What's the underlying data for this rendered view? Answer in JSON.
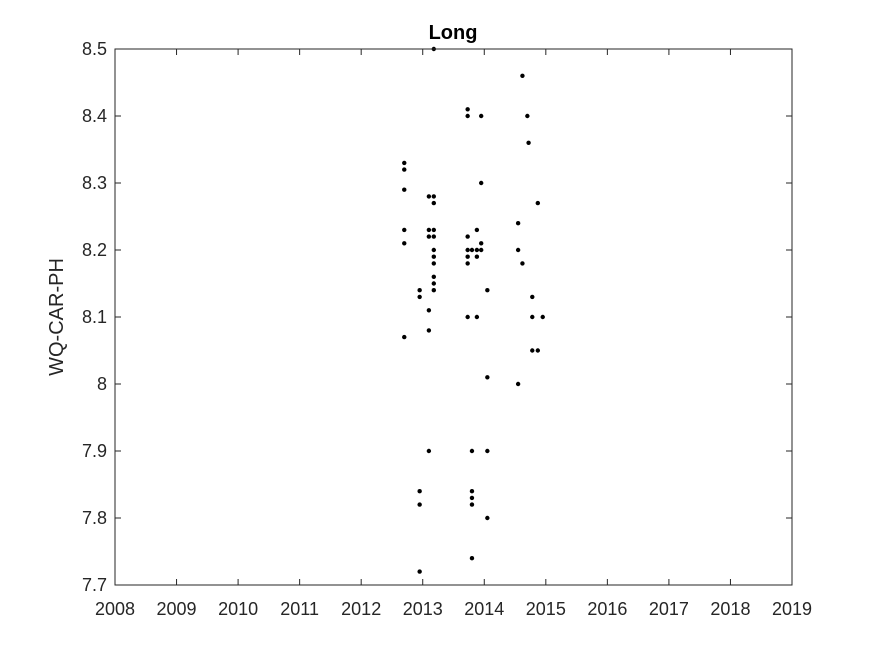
{
  "chart_data": {
    "type": "scatter",
    "title": "Long",
    "xlabel": "",
    "ylabel": "WQ-CAR-PH",
    "xlim": [
      2008,
      2019
    ],
    "ylim": [
      7.7,
      8.5
    ],
    "x_ticks": [
      "2008",
      "2009",
      "2010",
      "2011",
      "2012",
      "2013",
      "2014",
      "2015",
      "2016",
      "2017",
      "2018",
      "2019"
    ],
    "y_ticks": [
      "7.7",
      "7.8",
      "7.9",
      "8",
      "8.1",
      "8.2",
      "8.3",
      "8.4",
      "8.5"
    ],
    "grid": false,
    "legend": "none",
    "marker_color": "#000000",
    "points": [
      [
        2012.7,
        8.33
      ],
      [
        2012.7,
        8.32
      ],
      [
        2012.7,
        8.29
      ],
      [
        2012.7,
        8.23
      ],
      [
        2012.7,
        8.21
      ],
      [
        2012.7,
        8.07
      ],
      [
        2012.95,
        8.14
      ],
      [
        2012.95,
        8.13
      ],
      [
        2012.95,
        7.84
      ],
      [
        2012.95,
        7.82
      ],
      [
        2012.95,
        7.72
      ],
      [
        2013.1,
        8.28
      ],
      [
        2013.1,
        8.23
      ],
      [
        2013.1,
        8.22
      ],
      [
        2013.1,
        8.11
      ],
      [
        2013.1,
        8.08
      ],
      [
        2013.1,
        7.9
      ],
      [
        2013.18,
        8.5
      ],
      [
        2013.18,
        8.28
      ],
      [
        2013.18,
        8.27
      ],
      [
        2013.18,
        8.23
      ],
      [
        2013.18,
        8.22
      ],
      [
        2013.18,
        8.2
      ],
      [
        2013.18,
        8.19
      ],
      [
        2013.18,
        8.18
      ],
      [
        2013.18,
        8.16
      ],
      [
        2013.18,
        8.15
      ],
      [
        2013.18,
        8.14
      ],
      [
        2013.73,
        8.41
      ],
      [
        2013.73,
        8.4
      ],
      [
        2013.73,
        8.22
      ],
      [
        2013.73,
        8.2
      ],
      [
        2013.73,
        8.19
      ],
      [
        2013.73,
        8.18
      ],
      [
        2013.73,
        8.1
      ],
      [
        2013.8,
        8.2
      ],
      [
        2013.8,
        7.9
      ],
      [
        2013.8,
        7.84
      ],
      [
        2013.8,
        7.83
      ],
      [
        2013.8,
        7.82
      ],
      [
        2013.8,
        7.74
      ],
      [
        2013.88,
        8.23
      ],
      [
        2013.88,
        8.2
      ],
      [
        2013.88,
        8.19
      ],
      [
        2013.88,
        8.1
      ],
      [
        2013.95,
        8.4
      ],
      [
        2013.95,
        8.3
      ],
      [
        2013.95,
        8.21
      ],
      [
        2013.95,
        8.2
      ],
      [
        2014.05,
        8.14
      ],
      [
        2014.05,
        8.01
      ],
      [
        2014.05,
        7.9
      ],
      [
        2014.05,
        7.8
      ],
      [
        2014.55,
        8.24
      ],
      [
        2014.55,
        8.2
      ],
      [
        2014.55,
        8.0
      ],
      [
        2014.62,
        8.46
      ],
      [
        2014.62,
        8.18
      ],
      [
        2014.7,
        8.4
      ],
      [
        2014.72,
        8.36
      ],
      [
        2014.78,
        8.13
      ],
      [
        2014.78,
        8.1
      ],
      [
        2014.78,
        8.05
      ],
      [
        2014.87,
        8.27
      ],
      [
        2014.87,
        8.05
      ],
      [
        2014.95,
        8.1
      ]
    ]
  }
}
